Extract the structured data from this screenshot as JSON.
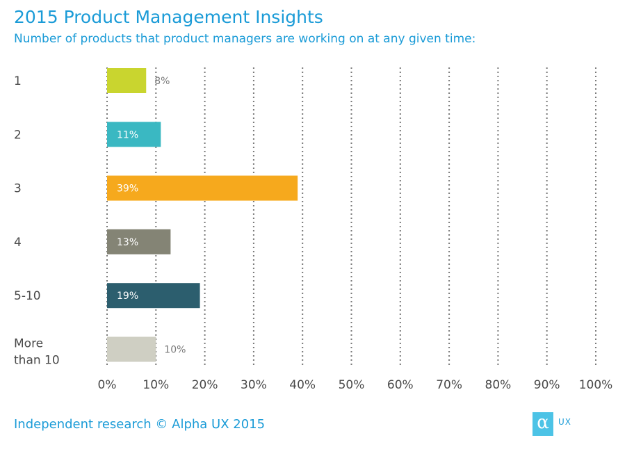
{
  "header": {
    "title": "2015 Product Management  Insights",
    "subtitle": "Number of products that product managers are working on at any given time:"
  },
  "chart_data": {
    "type": "bar",
    "orientation": "horizontal",
    "categories": [
      "1",
      "2",
      "3",
      "4",
      "5-10",
      "More than 10"
    ],
    "category_lines": [
      [
        "1"
      ],
      [
        "2"
      ],
      [
        "3"
      ],
      [
        "4"
      ],
      [
        "5-10"
      ],
      [
        "More",
        "than 10"
      ]
    ],
    "values": [
      8,
      11,
      39,
      13,
      19,
      10
    ],
    "data_labels": [
      "8%",
      "11%",
      "39%",
      "13%",
      "19%",
      "10%"
    ],
    "label_inside": [
      false,
      true,
      true,
      true,
      true,
      false
    ],
    "bar_colors": [
      "#c9d52f",
      "#3ab8c2",
      "#f6a91d",
      "#848475",
      "#2c5e6e",
      "#cfcfc3"
    ],
    "xlim": [
      0,
      100
    ],
    "x_ticks": [
      "0%",
      "10%",
      "20%",
      "30%",
      "40%",
      "50%",
      "60%",
      "70%",
      "80%",
      "90%",
      "100%"
    ],
    "grid": true,
    "grid_style": "dotted vertical"
  },
  "footer": {
    "text": "Independent research © Alpha UX 2015"
  },
  "logo": {
    "glyph": "α",
    "text": "UX"
  },
  "colors": {
    "accent": "#1a9bd7",
    "text_dark": "#4a4a4a"
  }
}
